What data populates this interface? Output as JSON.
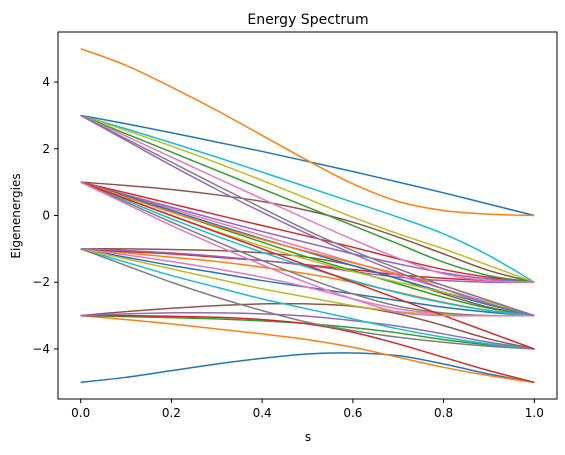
{
  "chart_data": {
    "type": "line",
    "title": "Energy Spectrum",
    "xlabel": "s",
    "ylabel": "Eigenenergies",
    "xlim": [
      -0.05,
      1.05
    ],
    "ylim": [
      -5.5,
      5.5
    ],
    "xticks": [
      0.0,
      0.2,
      0.4,
      0.6,
      0.8,
      1.0
    ],
    "xtick_labels": [
      "0.0",
      "0.2",
      "0.4",
      "0.6",
      "0.8",
      "1.0"
    ],
    "yticks": [
      -4,
      -2,
      0,
      2,
      4
    ],
    "ytick_labels": [
      "−4",
      "−2",
      "0",
      "2",
      "4"
    ],
    "grid": false,
    "legend": "none",
    "color_cycle": [
      "#1f77b4",
      "#ff7f0e",
      "#2ca02c",
      "#d62728",
      "#9467bd",
      "#8c564b",
      "#e377c2",
      "#7f7f7f",
      "#bcbd22",
      "#17becf"
    ],
    "x": [
      0.0,
      0.1,
      0.2,
      0.3,
      0.4,
      0.5,
      0.6,
      0.7,
      0.8,
      0.9,
      1.0
    ],
    "series": [
      {
        "color": "#1f77b4",
        "values": [
          -5.0,
          -4.85,
          -4.65,
          -4.45,
          -4.28,
          -4.15,
          -4.12,
          -4.2,
          -4.45,
          -4.75,
          -5.0
        ]
      },
      {
        "color": "#ff7f0e",
        "values": [
          -3.0,
          -3.12,
          -3.25,
          -3.4,
          -3.55,
          -3.72,
          -3.95,
          -4.25,
          -4.55,
          -4.8,
          -5.0
        ]
      },
      {
        "color": "#2ca02c",
        "values": [
          -3.0,
          -3.03,
          -3.06,
          -3.1,
          -3.16,
          -3.24,
          -3.36,
          -3.52,
          -3.72,
          -3.88,
          -4.0
        ]
      },
      {
        "color": "#d62728",
        "values": [
          -3.0,
          -3.0,
          -3.02,
          -3.05,
          -3.12,
          -3.25,
          -3.5,
          -3.85,
          -4.25,
          -4.65,
          -5.0
        ]
      },
      {
        "color": "#8c564b",
        "values": [
          -3.0,
          -2.88,
          -2.78,
          -2.7,
          -2.65,
          -2.65,
          -2.72,
          -2.95,
          -3.3,
          -3.7,
          -4.0
        ]
      },
      {
        "color": "#9467bd",
        "values": [
          -3.0,
          -2.95,
          -2.92,
          -2.92,
          -2.95,
          -3.02,
          -3.15,
          -3.32,
          -3.55,
          -3.8,
          -4.0
        ]
      },
      {
        "color": "#17becf",
        "values": [
          -1.0,
          -1.4,
          -1.8,
          -2.15,
          -2.5,
          -2.8,
          -3.1,
          -3.4,
          -3.65,
          -3.85,
          -4.0
        ]
      },
      {
        "color": "#1f77b4",
        "values": [
          -1.0,
          -1.25,
          -1.5,
          -1.72,
          -1.95,
          -2.15,
          -2.35,
          -2.55,
          -2.75,
          -2.9,
          -3.0
        ]
      },
      {
        "color": "#ff7f0e",
        "values": [
          -1.0,
          -1.12,
          -1.25,
          -1.38,
          -1.55,
          -1.75,
          -2.0,
          -2.3,
          -2.6,
          -2.85,
          -3.0
        ]
      },
      {
        "color": "#d62728",
        "values": [
          -1.0,
          -1.08,
          -1.15,
          -1.25,
          -1.35,
          -1.48,
          -1.62,
          -1.78,
          -1.88,
          -1.95,
          -2.0
        ]
      },
      {
        "color": "#8c564b",
        "values": [
          -1.0,
          -1.0,
          -1.02,
          -1.05,
          -1.12,
          -1.25,
          -1.5,
          -1.9,
          -2.35,
          -2.75,
          -3.0
        ]
      },
      {
        "color": "#e377c2",
        "values": [
          -1.0,
          -1.18,
          -1.38,
          -1.6,
          -1.85,
          -2.15,
          -2.5,
          -2.8,
          -2.95,
          -3.0,
          -3.0
        ]
      },
      {
        "color": "#9467bd",
        "values": [
          -1.0,
          -1.05,
          -1.12,
          -1.22,
          -1.35,
          -1.5,
          -1.68,
          -1.85,
          -1.95,
          -2.0,
          -2.0
        ]
      },
      {
        "color": "#bcbd22",
        "values": [
          -1.0,
          -1.3,
          -1.6,
          -1.9,
          -2.2,
          -2.45,
          -2.7,
          -2.88,
          -2.97,
          -3.0,
          -3.0
        ]
      },
      {
        "color": "#7f7f7f",
        "values": [
          -1.0,
          -1.5,
          -2.0,
          -2.45,
          -2.85,
          -3.2,
          -3.45,
          -3.65,
          -3.8,
          -3.92,
          -4.0
        ]
      },
      {
        "color": "#8c564b",
        "values": [
          1.0,
          0.9,
          0.78,
          0.62,
          0.42,
          0.15,
          -0.2,
          -0.65,
          -1.15,
          -1.65,
          -2.0
        ]
      },
      {
        "color": "#d62728",
        "values": [
          1.0,
          0.68,
          0.35,
          0.02,
          -0.3,
          -0.62,
          -0.95,
          -1.3,
          -1.62,
          -1.85,
          -2.0
        ]
      },
      {
        "color": "#e377c2",
        "values": [
          1.0,
          0.6,
          0.2,
          -0.2,
          -0.6,
          -1.0,
          -1.4,
          -1.8,
          -2.2,
          -2.6,
          -3.0
        ]
      },
      {
        "color": "#9467bd",
        "values": [
          1.0,
          0.62,
          0.25,
          -0.12,
          -0.48,
          -0.82,
          -1.15,
          -1.45,
          -1.72,
          -1.9,
          -2.0
        ]
      },
      {
        "color": "#1f77b4",
        "values": [
          1.0,
          0.58,
          0.15,
          -0.28,
          -0.7,
          -1.1,
          -1.5,
          -1.9,
          -2.3,
          -2.68,
          -3.0
        ]
      },
      {
        "color": "#2ca02c",
        "values": [
          1.0,
          0.55,
          0.1,
          -0.35,
          -0.8,
          -1.25,
          -1.65,
          -2.05,
          -2.45,
          -2.78,
          -3.0
        ]
      },
      {
        "color": "#ff7f0e",
        "values": [
          1.0,
          0.55,
          0.1,
          -0.32,
          -0.72,
          -1.08,
          -1.42,
          -1.75,
          -2.1,
          -2.55,
          -3.0
        ]
      },
      {
        "color": "#bcbd22",
        "values": [
          1.0,
          0.5,
          0.0,
          -0.48,
          -0.92,
          -1.32,
          -1.68,
          -2.0,
          -2.3,
          -2.62,
          -3.0
        ]
      },
      {
        "color": "#17becf",
        "values": [
          1.0,
          0.45,
          -0.1,
          -0.62,
          -1.1,
          -1.55,
          -1.95,
          -2.32,
          -2.62,
          -2.85,
          -3.0
        ]
      },
      {
        "color": "#7f7f7f",
        "values": [
          1.0,
          0.4,
          -0.2,
          -0.78,
          -1.35,
          -1.88,
          -2.35,
          -2.72,
          -2.92,
          -3.0,
          -3.0
        ]
      },
      {
        "color": "#d62728",
        "values": [
          1.0,
          0.5,
          0.0,
          -0.5,
          -1.0,
          -1.5,
          -2.0,
          -2.5,
          -3.0,
          -3.5,
          -4.0
        ]
      },
      {
        "color": "#e377c2",
        "values": [
          1.0,
          0.35,
          -0.3,
          -0.9,
          -1.48,
          -2.02,
          -2.5,
          -2.9,
          -3.0,
          -3.0,
          -3.0
        ]
      },
      {
        "color": "#1f77b4",
        "values": [
          3.0,
          2.75,
          2.48,
          2.2,
          1.92,
          1.62,
          1.32,
          1.0,
          0.68,
          0.34,
          0.0
        ]
      },
      {
        "color": "#17becf",
        "values": [
          3.0,
          2.6,
          2.18,
          1.75,
          1.3,
          0.85,
          0.4,
          -0.05,
          -0.55,
          -1.2,
          -2.0
        ]
      },
      {
        "color": "#bcbd22",
        "values": [
          3.0,
          2.55,
          2.08,
          1.58,
          1.05,
          0.5,
          -0.05,
          -0.55,
          -1.0,
          -1.5,
          -2.0
        ]
      },
      {
        "color": "#2ca02c",
        "values": [
          3.0,
          2.45,
          1.9,
          1.35,
          0.8,
          0.25,
          -0.3,
          -0.85,
          -1.4,
          -1.8,
          -2.0
        ]
      },
      {
        "color": "#e377c2",
        "values": [
          3.0,
          2.38,
          1.75,
          1.12,
          0.5,
          -0.12,
          -0.72,
          -1.28,
          -1.75,
          -1.95,
          -2.0
        ]
      },
      {
        "color": "#7f7f7f",
        "values": [
          3.0,
          2.3,
          1.6,
          0.9,
          0.22,
          -0.45,
          -1.05,
          -1.6,
          -2.1,
          -2.55,
          -3.0
        ]
      },
      {
        "color": "#9467bd",
        "values": [
          3.0,
          2.25,
          1.5,
          0.78,
          0.1,
          -0.55,
          -1.15,
          -1.7,
          -2.2,
          -2.65,
          -3.0
        ]
      },
      {
        "color": "#ff7f0e",
        "values": [
          5.0,
          4.5,
          3.85,
          3.15,
          2.4,
          1.65,
          0.95,
          0.42,
          0.15,
          0.04,
          0.0
        ]
      }
    ]
  }
}
